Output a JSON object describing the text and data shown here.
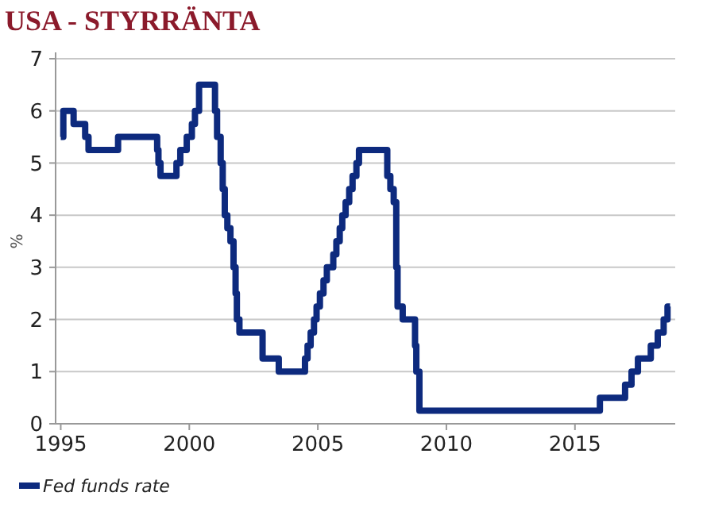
{
  "chart_data": {
    "type": "step",
    "title": "USA - STYRRÄNTA",
    "ylabel": "%",
    "x": [
      1995.0,
      1995.1,
      1995.5,
      1995.95,
      1996.08,
      1997.23,
      1998.75,
      1998.8,
      1998.88,
      1999.5,
      1999.65,
      1999.9,
      2000.1,
      2000.22,
      2000.38,
      2001.0,
      2001.08,
      2001.22,
      2001.3,
      2001.38,
      2001.48,
      2001.6,
      2001.72,
      2001.8,
      2001.85,
      2001.95,
      2002.85,
      2003.48,
      2004.5,
      2004.6,
      2004.72,
      2004.85,
      2004.95,
      2005.08,
      2005.22,
      2005.35,
      2005.6,
      2005.72,
      2005.85,
      2005.95,
      2006.08,
      2006.22,
      2006.35,
      2006.5,
      2006.6,
      2007.7,
      2007.82,
      2007.95,
      2008.05,
      2008.1,
      2008.3,
      2008.78,
      2008.83,
      2008.95,
      2015.97,
      2016.95,
      2017.2,
      2017.45,
      2017.95,
      2018.22,
      2018.45,
      2018.6,
      2018.7
    ],
    "series": [
      {
        "name": "Fed funds rate",
        "color": "#0d2a7e",
        "values": [
          5.5,
          6.0,
          5.75,
          5.5,
          5.25,
          5.5,
          5.25,
          5.0,
          4.75,
          5.0,
          5.25,
          5.5,
          5.75,
          6.0,
          6.5,
          6.0,
          5.5,
          5.0,
          4.5,
          4.0,
          3.75,
          3.5,
          3.0,
          2.5,
          2.0,
          1.75,
          1.25,
          1.0,
          1.25,
          1.5,
          1.75,
          2.0,
          2.25,
          2.5,
          2.75,
          3.0,
          3.25,
          3.5,
          3.75,
          4.0,
          4.25,
          4.5,
          4.75,
          5.0,
          5.25,
          4.75,
          4.5,
          4.25,
          3.0,
          2.25,
          2.0,
          1.5,
          1.0,
          0.25,
          0.5,
          0.75,
          1.0,
          1.25,
          1.5,
          1.75,
          2.0,
          2.25,
          2.25
        ]
      }
    ],
    "xlim": [
      1994.8,
      2018.9
    ],
    "xticks": [
      1995,
      2000,
      2005,
      2010,
      2015
    ],
    "ylim": [
      0,
      7
    ],
    "yticks": [
      0,
      1,
      2,
      3,
      4,
      5,
      6,
      7
    ],
    "grid": "y",
    "legend": "bottom left"
  }
}
